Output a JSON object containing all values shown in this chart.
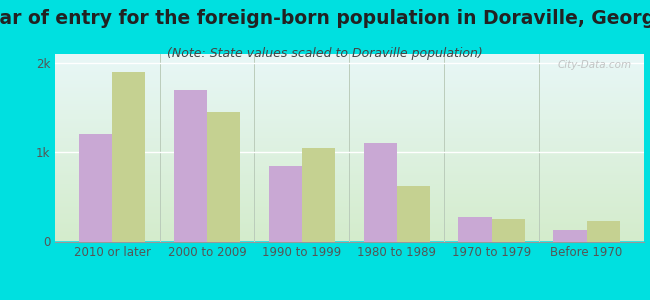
{
  "title": "Year of entry for the foreign-born population in Doraville, Georgia",
  "subtitle": "(Note: State values scaled to Doraville population)",
  "categories": [
    "2010 or later",
    "2000 to 2009",
    "1990 to 1999",
    "1980 to 1989",
    "1970 to 1979",
    "Before 1970"
  ],
  "doraville": [
    1200,
    1700,
    850,
    1100,
    270,
    130
  ],
  "georgia": [
    1900,
    1450,
    1050,
    620,
    250,
    230
  ],
  "doraville_color": "#c9a8d4",
  "georgia_color": "#c5d191",
  "background_outer": "#00e0e0",
  "grid_color": "#ffffff",
  "title_fontsize": 13.5,
  "subtitle_fontsize": 9,
  "tick_label_fontsize": 8.5,
  "legend_fontsize": 10,
  "ylim": [
    0,
    2100
  ],
  "yticks": [
    0,
    1000,
    2000
  ],
  "ytick_labels": [
    "0",
    "1k",
    "2k"
  ],
  "bar_width": 0.35,
  "watermark": "City-Data.com"
}
